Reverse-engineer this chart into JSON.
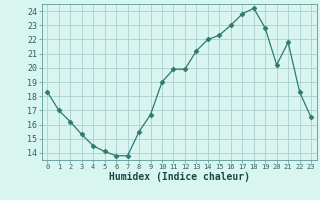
{
  "x": [
    0,
    1,
    2,
    3,
    4,
    5,
    6,
    7,
    8,
    9,
    10,
    11,
    12,
    13,
    14,
    15,
    16,
    17,
    18,
    19,
    20,
    21,
    22,
    23
  ],
  "y": [
    18.3,
    17.0,
    16.2,
    15.3,
    14.5,
    14.1,
    13.8,
    13.8,
    15.5,
    16.7,
    19.0,
    19.9,
    19.9,
    21.2,
    22.0,
    22.3,
    23.0,
    23.8,
    24.2,
    22.8,
    20.2,
    21.8,
    18.3,
    16.5
  ],
  "line_color": "#2d7a6e",
  "marker_size": 2.5,
  "bg_color": "#d8f5f0",
  "grid_color": "#aacfcf",
  "xlabel": "Humidex (Indice chaleur)",
  "yticks": [
    14,
    15,
    16,
    17,
    18,
    19,
    20,
    21,
    22,
    23,
    24
  ],
  "xticks": [
    0,
    1,
    2,
    3,
    4,
    5,
    6,
    7,
    8,
    9,
    10,
    11,
    12,
    13,
    14,
    15,
    16,
    17,
    18,
    19,
    20,
    21,
    22,
    23
  ],
  "xlim": [
    -0.5,
    23.5
  ],
  "ylim": [
    13.5,
    24.5
  ],
  "tick_color": "#2d6060",
  "label_color": "#1a4848"
}
